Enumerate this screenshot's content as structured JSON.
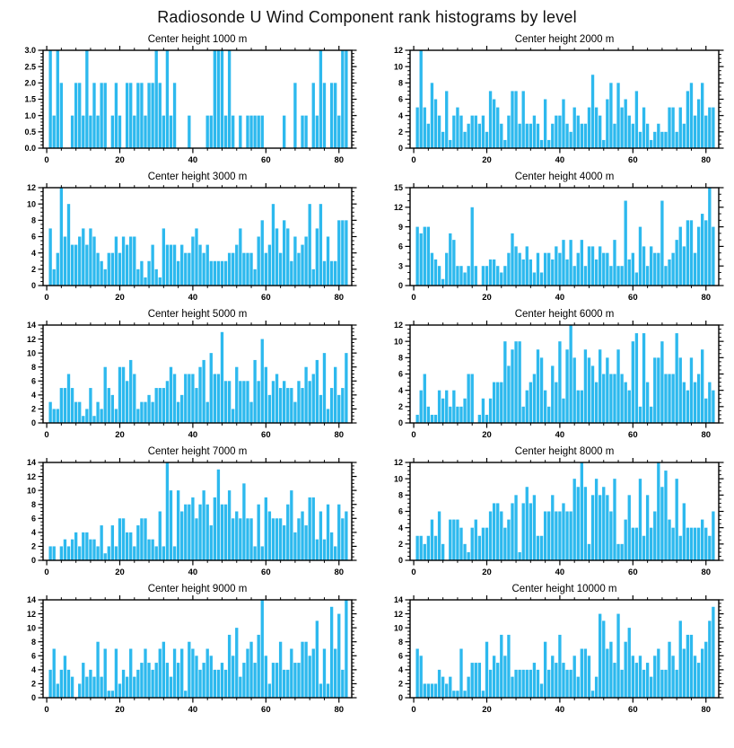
{
  "page_title": "Radiosonde U Wind Component rank histograms by level",
  "colors": {
    "bar": "#2DB9EE",
    "axis": "#000000",
    "background": "#FFFFFF",
    "text": "#000000"
  },
  "layout_hints": {
    "grid_rows": 5,
    "grid_cols": 2,
    "gridlines": false,
    "legend": "none"
  },
  "chart_data": [
    {
      "type": "bar",
      "id": "1000m",
      "title": "Center height 1000 m",
      "ylim": [
        0,
        3
      ],
      "ystep": 0.5,
      "yminor": 0.1,
      "ydecimals": 1,
      "xticks": [
        0,
        20,
        40,
        60,
        80
      ],
      "xminor": 4,
      "xlim": [
        -1,
        83.5
      ],
      "values": [
        3,
        1,
        3,
        2,
        0,
        0,
        1,
        2,
        2,
        1,
        3,
        1,
        2,
        1,
        2,
        2,
        0,
        1,
        2,
        1,
        0,
        2,
        2,
        1,
        2,
        2,
        1,
        2,
        2,
        3,
        2,
        1,
        3,
        1,
        2,
        0,
        0,
        0,
        1,
        0,
        0,
        0,
        0,
        1,
        1,
        3,
        3,
        3,
        1,
        3,
        1,
        0,
        1,
        0,
        1,
        1,
        1,
        1,
        1,
        0,
        0,
        0,
        0,
        0,
        1,
        0,
        0,
        2,
        0,
        1,
        1,
        0,
        2,
        1,
        3,
        2,
        0,
        2,
        2,
        1,
        3,
        3
      ]
    },
    {
      "type": "bar",
      "id": "2000m",
      "title": "Center height 2000 m",
      "ylim": [
        0,
        12
      ],
      "ystep": 2,
      "yminor": 0.5,
      "ydecimals": 0,
      "xticks": [
        0,
        20,
        40,
        60,
        80
      ],
      "xminor": 4,
      "xlim": [
        -1,
        83.5
      ],
      "values": [
        5,
        12,
        5,
        3,
        8,
        6,
        4,
        2,
        7,
        1,
        4,
        5,
        4,
        2,
        3,
        4,
        4,
        3,
        4,
        2,
        7,
        6,
        5,
        3,
        1,
        4,
        7,
        7,
        3,
        7,
        3,
        3,
        4,
        3,
        1,
        6,
        1,
        3,
        4,
        4,
        6,
        3,
        2,
        5,
        4,
        3,
        3,
        5,
        9,
        5,
        4,
        1,
        6,
        8,
        3,
        8,
        5,
        6,
        4,
        3,
        7,
        2,
        5,
        3,
        1,
        2,
        3,
        2,
        2,
        5,
        5,
        2,
        5,
        3,
        7,
        8,
        4,
        6,
        8,
        4,
        5,
        5
      ]
    },
    {
      "type": "bar",
      "id": "3000m",
      "title": "Center height 3000 m",
      "ylim": [
        0,
        12
      ],
      "ystep": 2,
      "yminor": 0.5,
      "ydecimals": 0,
      "xticks": [
        0,
        20,
        40,
        60,
        80
      ],
      "xminor": 4,
      "xlim": [
        -1,
        83.5
      ],
      "values": [
        7,
        2,
        4,
        12,
        6,
        10,
        5,
        5,
        6,
        7,
        5,
        7,
        6,
        4,
        3,
        2,
        4,
        4,
        6,
        4,
        6,
        5,
        6,
        6,
        2,
        3,
        1,
        3,
        5,
        2,
        1,
        7,
        5,
        5,
        5,
        3,
        5,
        4,
        4,
        6,
        7,
        5,
        4,
        5,
        3,
        3,
        3,
        3,
        3,
        4,
        4,
        5,
        7,
        4,
        4,
        4,
        2,
        6,
        8,
        4,
        5,
        10,
        7,
        4,
        8,
        7,
        3,
        6,
        4,
        5,
        6,
        10,
        2,
        7,
        10,
        3,
        6,
        3,
        3,
        8,
        8,
        8
      ]
    },
    {
      "type": "bar",
      "id": "4000m",
      "title": "Center height 4000 m",
      "ylim": [
        0,
        15
      ],
      "ystep": 3,
      "yminor": 1,
      "ydecimals": 0,
      "xticks": [
        0,
        20,
        40,
        60,
        80
      ],
      "xminor": 4,
      "xlim": [
        -1,
        83.5
      ],
      "values": [
        9,
        8,
        9,
        9,
        5,
        4,
        3,
        1,
        5,
        8,
        7,
        3,
        3,
        2,
        3,
        12,
        3,
        0,
        3,
        3,
        4,
        4,
        3,
        2,
        3,
        5,
        8,
        6,
        5,
        4,
        6,
        4,
        2,
        5,
        2,
        5,
        5,
        4,
        6,
        5,
        7,
        4,
        7,
        3,
        5,
        7,
        3,
        6,
        6,
        4,
        6,
        5,
        5,
        3,
        7,
        3,
        3,
        13,
        4,
        5,
        2,
        9,
        6,
        3,
        6,
        5,
        5,
        13,
        3,
        4,
        5,
        7,
        9,
        6,
        10,
        10,
        5,
        9,
        11,
        10,
        15,
        9
      ]
    },
    {
      "type": "bar",
      "id": "5000m",
      "title": "Center height 5000 m",
      "ylim": [
        0,
        14
      ],
      "ystep": 2,
      "yminor": 0.5,
      "ydecimals": 0,
      "xticks": [
        0,
        20,
        40,
        60,
        80
      ],
      "xminor": 4,
      "xlim": [
        -1,
        83.5
      ],
      "values": [
        3,
        2,
        2,
        5,
        5,
        7,
        5,
        3,
        3,
        1,
        2,
        5,
        1,
        3,
        2,
        8,
        5,
        4,
        2,
        8,
        8,
        6,
        9,
        7,
        2,
        3,
        3,
        4,
        3,
        5,
        5,
        5,
        6,
        8,
        7,
        3,
        4,
        7,
        7,
        7,
        5,
        8,
        9,
        3,
        10,
        7,
        7,
        13,
        6,
        6,
        2,
        8,
        6,
        6,
        6,
        3,
        9,
        6,
        12,
        8,
        4,
        6,
        7,
        5,
        6,
        5,
        5,
        3,
        6,
        5,
        8,
        6,
        7,
        9,
        4,
        10,
        2,
        5,
        8,
        4,
        5,
        10
      ]
    },
    {
      "type": "bar",
      "id": "6000m",
      "title": "Center height 6000 m",
      "ylim": [
        0,
        12
      ],
      "ystep": 2,
      "yminor": 0.5,
      "ydecimals": 0,
      "xticks": [
        0,
        20,
        40,
        60,
        80
      ],
      "xminor": 4,
      "xlim": [
        -1,
        83.5
      ],
      "values": [
        1,
        4,
        6,
        2,
        1,
        1,
        4,
        3,
        4,
        2,
        4,
        2,
        2,
        3,
        6,
        6,
        0,
        1,
        3,
        1,
        3,
        5,
        5,
        5,
        10,
        7,
        9,
        10,
        10,
        2,
        4,
        5,
        6,
        9,
        8,
        4,
        2,
        7,
        5,
        10,
        3,
        9,
        12,
        8,
        4,
        4,
        9,
        8,
        7,
        5,
        9,
        6,
        8,
        6,
        6,
        9,
        6,
        5,
        4,
        10,
        11,
        2,
        11,
        5,
        2,
        8,
        8,
        10,
        6,
        6,
        6,
        11,
        8,
        5,
        4,
        8,
        5,
        6,
        9,
        3,
        5,
        4
      ]
    },
    {
      "type": "bar",
      "id": "7000m",
      "title": "Center height 7000 m",
      "ylim": [
        0,
        14
      ],
      "ystep": 2,
      "yminor": 0.5,
      "ydecimals": 0,
      "xticks": [
        0,
        20,
        40,
        60,
        80
      ],
      "xminor": 4,
      "xlim": [
        -1,
        83.5
      ],
      "values": [
        2,
        2,
        0,
        2,
        3,
        2,
        3,
        4,
        2,
        4,
        4,
        3,
        3,
        2,
        5,
        1,
        2,
        5,
        2,
        6,
        6,
        4,
        4,
        2,
        5,
        6,
        6,
        3,
        3,
        2,
        7,
        2,
        14,
        10,
        2,
        10,
        7,
        8,
        8,
        9,
        6,
        8,
        10,
        8,
        5,
        9,
        13,
        8,
        8,
        10,
        6,
        7,
        6,
        11,
        6,
        6,
        2,
        8,
        2,
        9,
        7,
        6,
        6,
        6,
        5,
        8,
        10,
        4,
        6,
        7,
        5,
        9,
        9,
        3,
        7,
        3,
        8,
        4,
        2,
        8,
        6,
        7
      ]
    },
    {
      "type": "bar",
      "id": "8000m",
      "title": "Center height 8000 m",
      "ylim": [
        0,
        12
      ],
      "ystep": 2,
      "yminor": 0.5,
      "ydecimals": 0,
      "xticks": [
        0,
        20,
        40,
        60,
        80
      ],
      "xminor": 4,
      "xlim": [
        -1,
        83.5
      ],
      "values": [
        3,
        3,
        2,
        3,
        5,
        3,
        6,
        2,
        0,
        5,
        5,
        5,
        4,
        2,
        1,
        4,
        5,
        3,
        4,
        4,
        6,
        7,
        7,
        6,
        4,
        5,
        7,
        8,
        1,
        7,
        9,
        7,
        8,
        3,
        3,
        6,
        6,
        8,
        6,
        6,
        7,
        6,
        6,
        10,
        9,
        12,
        9,
        2,
        8,
        10,
        8,
        9,
        8,
        6,
        10,
        2,
        2,
        5,
        8,
        4,
        4,
        10,
        3,
        8,
        4,
        6,
        12,
        9,
        11,
        5,
        4,
        10,
        3,
        7,
        4,
        4,
        4,
        4,
        5,
        4,
        3,
        6
      ]
    },
    {
      "type": "bar",
      "id": "9000m",
      "title": "Center height 9000 m",
      "ylim": [
        0,
        14
      ],
      "ystep": 2,
      "yminor": 0.5,
      "ydecimals": 0,
      "xticks": [
        0,
        20,
        40,
        60,
        80
      ],
      "xminor": 4,
      "xlim": [
        -1,
        83.5
      ],
      "values": [
        4,
        7,
        2,
        4,
        6,
        4,
        3,
        0,
        2,
        5,
        3,
        4,
        3,
        8,
        3,
        7,
        1,
        1,
        7,
        2,
        4,
        3,
        7,
        3,
        4,
        5,
        7,
        5,
        4,
        5,
        7,
        8,
        5,
        3,
        7,
        5,
        7,
        1,
        8,
        7,
        6,
        4,
        5,
        7,
        6,
        4,
        4,
        5,
        4,
        9,
        6,
        10,
        3,
        5,
        7,
        8,
        5,
        9,
        14,
        6,
        2,
        5,
        5,
        8,
        4,
        4,
        7,
        5,
        5,
        8,
        8,
        6,
        7,
        11,
        2,
        7,
        2,
        13,
        7,
        12,
        4,
        14
      ]
    },
    {
      "type": "bar",
      "id": "10000m",
      "title": "Center height 10000 m",
      "ylim": [
        0,
        14
      ],
      "ystep": 2,
      "yminor": 0.5,
      "ydecimals": 0,
      "xticks": [
        0,
        20,
        40,
        60,
        80
      ],
      "xminor": 4,
      "xlim": [
        -1,
        83.5
      ],
      "values": [
        7,
        6,
        2,
        2,
        2,
        2,
        4,
        3,
        2,
        3,
        1,
        1,
        7,
        1,
        3,
        5,
        5,
        5,
        1,
        8,
        4,
        6,
        5,
        9,
        6,
        9,
        3,
        4,
        4,
        4,
        4,
        4,
        5,
        4,
        2,
        8,
        4,
        6,
        5,
        9,
        5,
        4,
        4,
        6,
        3,
        7,
        7,
        6,
        1,
        3,
        12,
        11,
        7,
        8,
        5,
        12,
        4,
        8,
        10,
        6,
        5,
        6,
        4,
        5,
        3,
        6,
        7,
        4,
        4,
        8,
        6,
        4,
        11,
        7,
        9,
        9,
        6,
        5,
        7,
        8,
        11,
        13
      ]
    }
  ]
}
